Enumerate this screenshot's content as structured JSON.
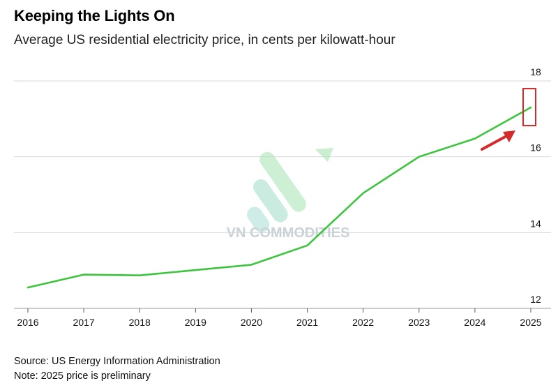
{
  "title": "Keeping the Lights On",
  "subtitle": "Average US residential electricity price, in cents per kilowatt-hour",
  "watermark": "VN COMMODITIES",
  "footer": {
    "source": "Source: US Energy Information Administration",
    "note": "Note: 2025 price is preliminary"
  },
  "colors": {
    "line": "#3cc43c",
    "grid": "#d9d9d9",
    "highlight": "#d42a2a",
    "watermark": "#c9d2d6"
  },
  "chart_data": {
    "type": "line",
    "title": "Keeping the Lights On",
    "subtitle": "Average US residential electricity price, in cents per kilowatt-hour",
    "xlabel": "",
    "ylabel": "",
    "x": [
      "2016",
      "2017",
      "2018",
      "2019",
      "2020",
      "2021",
      "2022",
      "2023",
      "2024",
      "2025"
    ],
    "series": [
      {
        "name": "Average US residential electricity price",
        "values": [
          12.55,
          12.89,
          12.87,
          13.01,
          13.15,
          13.66,
          15.04,
          16.0,
          16.48,
          17.3
        ]
      }
    ],
    "y_ticks": [
      "18",
      "16",
      "14",
      "12"
    ],
    "ylim": [
      12,
      18
    ],
    "grid": true,
    "y_axis_side": "right",
    "annotations": [
      "red box around 2025 value",
      "red arrow pointing to 2025 value"
    ]
  }
}
